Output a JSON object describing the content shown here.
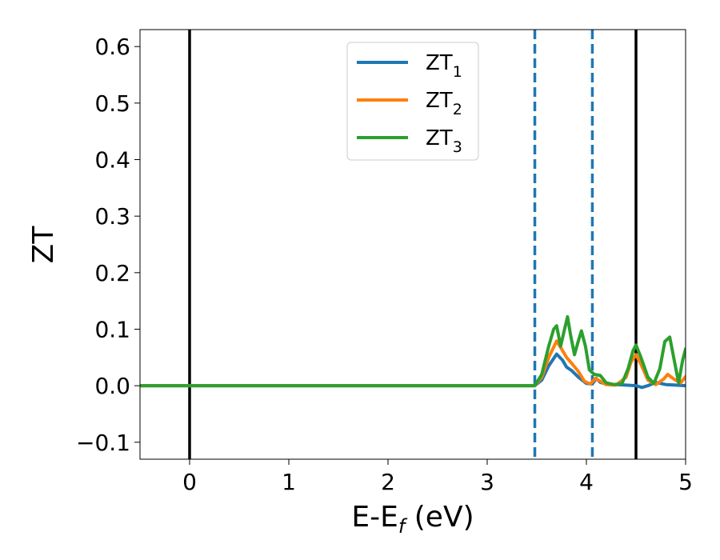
{
  "chart_data": {
    "type": "line",
    "xlabel": {
      "base": "E-E",
      "sub": "f",
      "suffix": " (eV)"
    },
    "ylabel": "ZT",
    "xlim": [
      -0.5,
      5.0
    ],
    "ylim": [
      -0.13,
      0.63
    ],
    "xticks": [
      0,
      1,
      2,
      3,
      4,
      5
    ],
    "xtick_labels": [
      "0",
      "1",
      "2",
      "3",
      "4",
      "5"
    ],
    "yticks": [
      -0.1,
      0.0,
      0.1,
      0.2,
      0.3,
      0.4,
      0.5,
      0.6
    ],
    "ytick_labels": [
      "−0.1",
      "0.0",
      "0.1",
      "0.2",
      "0.3",
      "0.4",
      "0.5",
      "0.6"
    ],
    "grid": false,
    "legend_position": "top-center",
    "vertical_lines": [
      {
        "x": 0.0,
        "style": "solid",
        "color": "#000000"
      },
      {
        "x": 4.5,
        "style": "solid",
        "color": "#000000"
      },
      {
        "x": 3.48,
        "style": "dashed",
        "color": "#1f77b4"
      },
      {
        "x": 4.06,
        "style": "dashed",
        "color": "#1f77b4"
      }
    ],
    "series": [
      {
        "name": "ZT",
        "sub": "1",
        "color": "#1f77b4",
        "x": [
          -0.5,
          3.48,
          3.55,
          3.62,
          3.7,
          3.76,
          3.8,
          3.85,
          3.92,
          4.0,
          4.06,
          4.1,
          4.14,
          4.2,
          4.3,
          4.4,
          4.5,
          4.56,
          4.62,
          4.7,
          4.8,
          4.9,
          5.0
        ],
        "y": [
          0.0,
          0.0,
          0.01,
          0.035,
          0.056,
          0.045,
          0.033,
          0.027,
          0.015,
          0.004,
          0.003,
          0.013,
          0.006,
          0.003,
          0.002,
          0.001,
          0.0,
          -0.003,
          0.0,
          0.006,
          0.002,
          0.001,
          0.0
        ]
      },
      {
        "name": "ZT",
        "sub": "2",
        "color": "#ff7f0e",
        "x": [
          -0.5,
          3.48,
          3.55,
          3.62,
          3.7,
          3.75,
          3.8,
          3.85,
          3.92,
          3.98,
          4.04,
          4.09,
          4.14,
          4.2,
          4.3,
          4.4,
          4.45,
          4.5,
          4.55,
          4.62,
          4.7,
          4.78,
          4.82,
          4.88,
          4.95,
          5.0
        ],
        "y": [
          0.0,
          0.0,
          0.015,
          0.05,
          0.079,
          0.065,
          0.05,
          0.04,
          0.025,
          0.008,
          0.003,
          0.013,
          0.008,
          0.002,
          0.001,
          0.015,
          0.042,
          0.055,
          0.038,
          0.01,
          0.002,
          0.012,
          0.02,
          0.012,
          0.005,
          0.016
        ]
      },
      {
        "name": "ZT",
        "sub": "3",
        "color": "#2ca02c",
        "x": [
          -0.5,
          3.48,
          3.55,
          3.62,
          3.67,
          3.7,
          3.74,
          3.78,
          3.81,
          3.84,
          3.88,
          3.92,
          3.95,
          3.99,
          4.03,
          4.08,
          4.14,
          4.2,
          4.28,
          4.36,
          4.42,
          4.47,
          4.5,
          4.55,
          4.62,
          4.68,
          4.74,
          4.79,
          4.84,
          4.88,
          4.93,
          4.97,
          5.0
        ],
        "y": [
          0.0,
          0.0,
          0.02,
          0.07,
          0.1,
          0.106,
          0.07,
          0.1,
          0.122,
          0.09,
          0.055,
          0.08,
          0.097,
          0.07,
          0.028,
          0.02,
          0.018,
          0.005,
          0.002,
          0.004,
          0.03,
          0.062,
          0.072,
          0.05,
          0.015,
          0.004,
          0.03,
          0.078,
          0.086,
          0.05,
          0.005,
          0.045,
          0.065
        ]
      }
    ]
  }
}
